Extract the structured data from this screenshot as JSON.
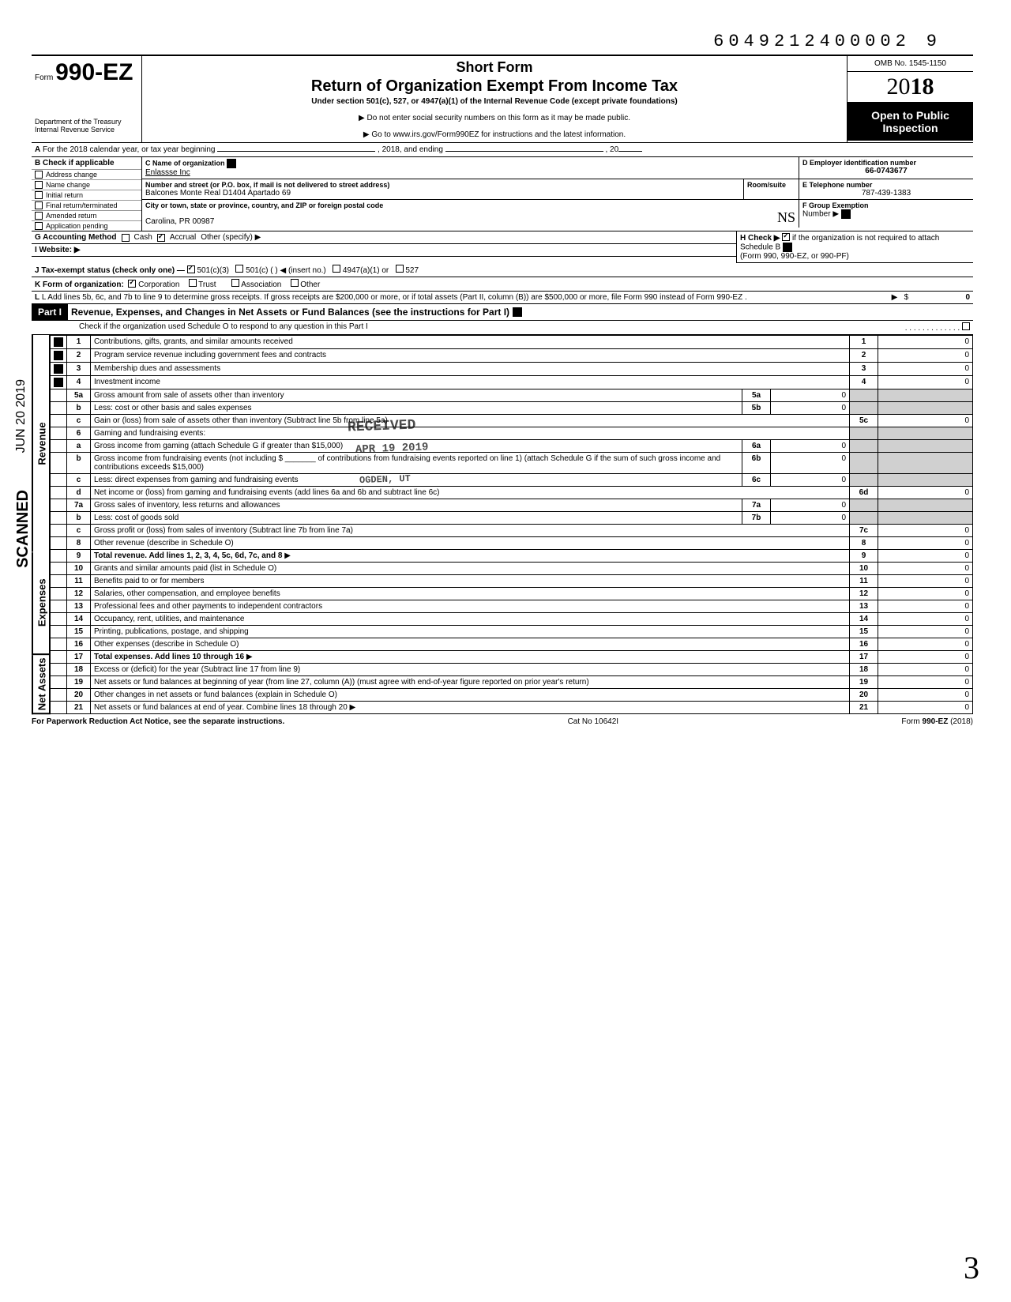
{
  "top_tracking": "6049212400002",
  "top_tracking_suffix": "9",
  "omb": "OMB No. 1545-1150",
  "form_number_prefix": "Form",
  "form_number": "990-EZ",
  "short_form": "Short Form",
  "return_title": "Return of Organization Exempt From Income Tax",
  "subtitle": "Under section 501(c), 527, or 4947(a)(1) of the Internal Revenue Code (except private foundations)",
  "directive1": "▶ Do not enter social security numbers on this form as it may be made public.",
  "directive2": "▶ Go to www.irs.gov/Form990EZ for instructions and the latest information.",
  "dept": "Department of the Treasury",
  "irs": "Internal Revenue Service",
  "year_display_prefix": "20",
  "year_display_bold": "18",
  "open_public_1": "Open to Public",
  "open_public_2": "Inspection",
  "line_A": "A For the 2018 calendar year, or tax year beginning _______________, 2018, and ending _______________, 20___",
  "B": {
    "header": "B Check if applicable",
    "items": [
      "Address change",
      "Name change",
      "Initial return",
      "Final return/terminated",
      "Amended return",
      "Application pending"
    ]
  },
  "C": {
    "label": "C Name of organization",
    "value": "Enlassse Inc",
    "street_label": "Number and street (or P.O. box, if mail is not delivered to street address)",
    "street_value": "Balcones Monte Real D1404 Apartado 69",
    "room_label": "Room/suite",
    "city_label": "City or town, state or province, country, and ZIP or foreign postal code",
    "city_value": "Carolina, PR 00987"
  },
  "D": {
    "label": "D Employer identification number",
    "value": "66-0743677"
  },
  "E": {
    "label": "E Telephone number",
    "value": "787-439-1383"
  },
  "F": {
    "label": "F Group Exemption",
    "sublabel": "Number ▶"
  },
  "G": {
    "label": "G Accounting Method",
    "cash": "Cash",
    "accrual": "Accrual",
    "other": "Other (specify) ▶"
  },
  "H": {
    "text1": "H Check ▶",
    "text2": "if the organization is not required to attach Schedule B",
    "text3": "(Form 990, 990-EZ, or 990-PF)"
  },
  "I": {
    "label": "I  Website: ▶"
  },
  "J": {
    "label": "J Tax-exempt status (check only one) —",
    "o1": "501(c)(3)",
    "o2": "501(c) (    ) ◀ (insert no.)",
    "o3": "4947(a)(1) or",
    "o4": "527"
  },
  "K": {
    "label": "K Form of organization:",
    "o1": "Corporation",
    "o2": "Trust",
    "o3": "Association",
    "o4": "Other"
  },
  "L": {
    "text": "L Add lines 5b, 6c, and 7b to line 9 to determine gross receipts. If gross receipts are $200,000 or more, or if total assets (Part II, column (B)) are $500,000 or more, file Form 990 instead of Form 990-EZ .",
    "amount": "0"
  },
  "part1": {
    "label": "Part I",
    "title": "Revenue, Expenses, and Changes in Net Assets or Fund Balances (see the instructions for Part I)",
    "check_o": "Check if the organization used Schedule O to respond to any question in this Part I"
  },
  "sections": {
    "revenue": "Revenue",
    "expenses": "Expenses",
    "netassets": "Net Assets"
  },
  "lines": [
    {
      "n": "1",
      "d": "Contributions, gifts, grants, and similar amounts received",
      "box": "1",
      "amt": "0"
    },
    {
      "n": "2",
      "d": "Program service revenue including government fees and contracts",
      "box": "2",
      "amt": "0"
    },
    {
      "n": "3",
      "d": "Membership dues and assessments",
      "box": "3",
      "amt": "0"
    },
    {
      "n": "4",
      "d": "Investment income",
      "box": "4",
      "amt": "0"
    },
    {
      "n": "5a",
      "d": "Gross amount from sale of assets other than inventory",
      "sub": "5a",
      "subamt": "0"
    },
    {
      "n": "b",
      "d": "Less: cost or other basis and sales expenses",
      "sub": "5b",
      "subamt": "0"
    },
    {
      "n": "c",
      "d": "Gain or (loss) from sale of assets other than inventory (Subtract line 5b from line 5a)",
      "box": "5c",
      "amt": "0"
    },
    {
      "n": "6",
      "d": "Gaming and fundraising events:"
    },
    {
      "n": "a",
      "d": "Gross income from gaming (attach Schedule G if greater than $15,000)",
      "sub": "6a",
      "subamt": "0"
    },
    {
      "n": "b",
      "d": "Gross income from fundraising events (not including $ _______ of contributions from fundraising events reported on line 1) (attach Schedule G if the sum of such gross income and contributions exceeds $15,000)",
      "sub": "6b",
      "subamt": "0"
    },
    {
      "n": "c",
      "d": "Less: direct expenses from gaming and fundraising events",
      "sub": "6c",
      "subamt": "0"
    },
    {
      "n": "d",
      "d": "Net income or (loss) from gaming and fundraising events (add lines 6a and 6b and subtract line 6c)",
      "box": "6d",
      "amt": "0"
    },
    {
      "n": "7a",
      "d": "Gross sales of inventory, less returns and allowances",
      "sub": "7a",
      "subamt": "0"
    },
    {
      "n": "b",
      "d": "Less: cost of goods sold",
      "sub": "7b",
      "subamt": "0"
    },
    {
      "n": "c",
      "d": "Gross profit or (loss) from sales of inventory (Subtract line 7b from line 7a)",
      "box": "7c",
      "amt": "0"
    },
    {
      "n": "8",
      "d": "Other revenue (describe in Schedule O)",
      "box": "8",
      "amt": "0"
    },
    {
      "n": "9",
      "d": "Total revenue. Add lines 1, 2, 3, 4, 5c, 6d, 7c, and 8",
      "box": "9",
      "amt": "0",
      "bold": true,
      "arrow": true
    },
    {
      "n": "10",
      "d": "Grants and similar amounts paid (list in Schedule O)",
      "box": "10",
      "amt": "0"
    },
    {
      "n": "11",
      "d": "Benefits paid to or for members",
      "box": "11",
      "amt": "0"
    },
    {
      "n": "12",
      "d": "Salaries, other compensation, and employee benefits",
      "box": "12",
      "amt": "0"
    },
    {
      "n": "13",
      "d": "Professional fees and other payments to independent contractors",
      "box": "13",
      "amt": "0"
    },
    {
      "n": "14",
      "d": "Occupancy, rent, utilities, and maintenance",
      "box": "14",
      "amt": "0"
    },
    {
      "n": "15",
      "d": "Printing, publications, postage, and shipping",
      "box": "15",
      "amt": "0"
    },
    {
      "n": "16",
      "d": "Other expenses (describe in Schedule O)",
      "box": "16",
      "amt": "0"
    },
    {
      "n": "17",
      "d": "Total expenses. Add lines 10 through 16",
      "box": "17",
      "amt": "0",
      "bold": true,
      "arrow": true
    },
    {
      "n": "18",
      "d": "Excess or (deficit) for the year (Subtract line 17 from line 9)",
      "box": "18",
      "amt": "0"
    },
    {
      "n": "19",
      "d": "Net assets or fund balances at beginning of year (from line 27, column (A)) (must agree with end-of-year figure reported on prior year's return)",
      "box": "19",
      "amt": "0"
    },
    {
      "n": "20",
      "d": "Other changes in net assets or fund balances (explain in Schedule O)",
      "box": "20",
      "amt": "0"
    },
    {
      "n": "21",
      "d": "Net assets or fund balances at end of year. Combine lines 18 through 20",
      "box": "21",
      "amt": "0",
      "arrow": true
    }
  ],
  "stamps": {
    "received": "RECEIVED",
    "date": "APR 19 2019",
    "ogden": "OGDEN, UT",
    "scanned": "SCANNED",
    "scan_date": "JUN 20 2019"
  },
  "footer": {
    "left": "For Paperwork Reduction Act Notice, see the separate instructions.",
    "mid": "Cat No 10642I",
    "right_prefix": "Form",
    "right_form": "990-EZ",
    "right_year": "(2018)"
  },
  "handwritten": "3",
  "initials": "NS"
}
